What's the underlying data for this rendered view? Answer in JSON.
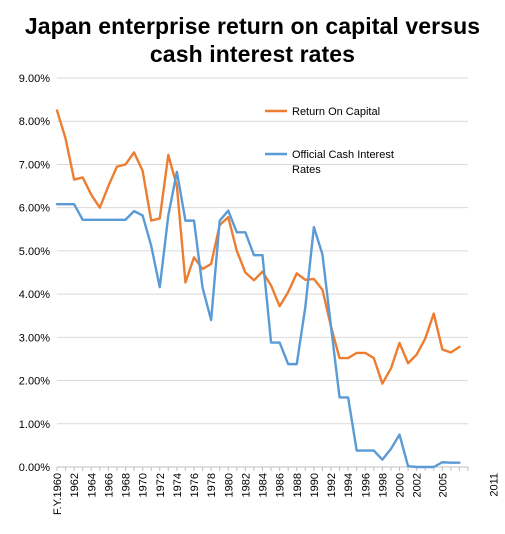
{
  "chart_data": {
    "type": "line",
    "title_line1": "Japan enterprise return on capital versus",
    "title_line2": "cash interest rates",
    "xlabel": "",
    "ylabel": "",
    "ylim": [
      0,
      9
    ],
    "y_ticks": [
      "0.00%",
      "1.00%",
      "2.00%",
      "3.00%",
      "4.00%",
      "5.00%",
      "6.00%",
      "7.00%",
      "8.00%",
      "9.00%"
    ],
    "x_tick_labels": [
      {
        "year": 1960,
        "label": "F.Y.1960"
      },
      {
        "year": 1962,
        "label": "1962"
      },
      {
        "year": 1964,
        "label": "1964"
      },
      {
        "year": 1966,
        "label": "1966"
      },
      {
        "year": 1968,
        "label": "1968"
      },
      {
        "year": 1970,
        "label": "1970"
      },
      {
        "year": 1972,
        "label": "1972"
      },
      {
        "year": 1974,
        "label": "1974"
      },
      {
        "year": 1976,
        "label": "1976"
      },
      {
        "year": 1978,
        "label": "1978"
      },
      {
        "year": 1980,
        "label": "1980"
      },
      {
        "year": 1982,
        "label": "1982"
      },
      {
        "year": 1984,
        "label": "1984"
      },
      {
        "year": 1986,
        "label": "1986"
      },
      {
        "year": 1988,
        "label": "1988"
      },
      {
        "year": 1990,
        "label": "1990"
      },
      {
        "year": 1992,
        "label": "1992"
      },
      {
        "year": 1994,
        "label": "1994"
      },
      {
        "year": 1996,
        "label": "1996"
      },
      {
        "year": 1998,
        "label": "1998"
      },
      {
        "year": 2000,
        "label": "2000"
      },
      {
        "year": 2002,
        "label": "2002"
      },
      {
        "year": 2005,
        "label": "2005"
      },
      {
        "year": 2011,
        "label": "2011"
      }
    ],
    "x": [
      1960,
      1961,
      1962,
      1963,
      1964,
      1965,
      1966,
      1967,
      1968,
      1969,
      1970,
      1971,
      1972,
      1973,
      1974,
      1975,
      1976,
      1977,
      1978,
      1979,
      1980,
      1981,
      1982,
      1983,
      1984,
      1985,
      1986,
      1987,
      1988,
      1989,
      1990,
      1991,
      1992,
      1993,
      1994,
      1995,
      1996,
      1997,
      1998,
      1999,
      2000,
      2001,
      2002,
      2003,
      2004,
      2005,
      2006,
      2007,
      2008
    ],
    "series": [
      {
        "name": "Return On Capital",
        "color": "#ED7D31",
        "values": [
          8.25,
          7.6,
          6.65,
          6.7,
          6.3,
          6.0,
          6.5,
          6.95,
          7.0,
          7.28,
          6.85,
          5.7,
          5.75,
          7.22,
          6.5,
          4.27,
          4.85,
          4.58,
          4.7,
          5.6,
          5.78,
          5.0,
          4.5,
          4.32,
          4.52,
          4.2,
          3.72,
          4.05,
          4.48,
          4.33,
          4.35,
          4.1,
          3.25,
          2.52,
          2.52,
          2.64,
          2.64,
          2.52,
          1.93,
          2.28,
          2.87,
          2.4,
          2.6,
          2.97,
          3.55,
          2.72,
          2.65,
          2.78,
          null
        ]
      },
      {
        "name": "Official Cash Interest Rates",
        "color": "#5B9BD5",
        "values": [
          6.08,
          6.08,
          6.08,
          5.72,
          5.72,
          5.72,
          5.72,
          5.72,
          5.72,
          5.92,
          5.82,
          5.12,
          4.16,
          5.82,
          6.83,
          5.7,
          5.7,
          4.15,
          3.4,
          5.7,
          5.93,
          5.43,
          5.43,
          4.9,
          4.9,
          2.88,
          2.88,
          2.38,
          2.38,
          3.7,
          5.55,
          4.92,
          3.25,
          1.61,
          1.61,
          0.38,
          0.38,
          0.38,
          0.17,
          0.42,
          0.75,
          0.02,
          0.0,
          0.0,
          0.0,
          0.11,
          0.1,
          0.1,
          null
        ]
      }
    ],
    "grid": true,
    "legend": "top-right"
  }
}
